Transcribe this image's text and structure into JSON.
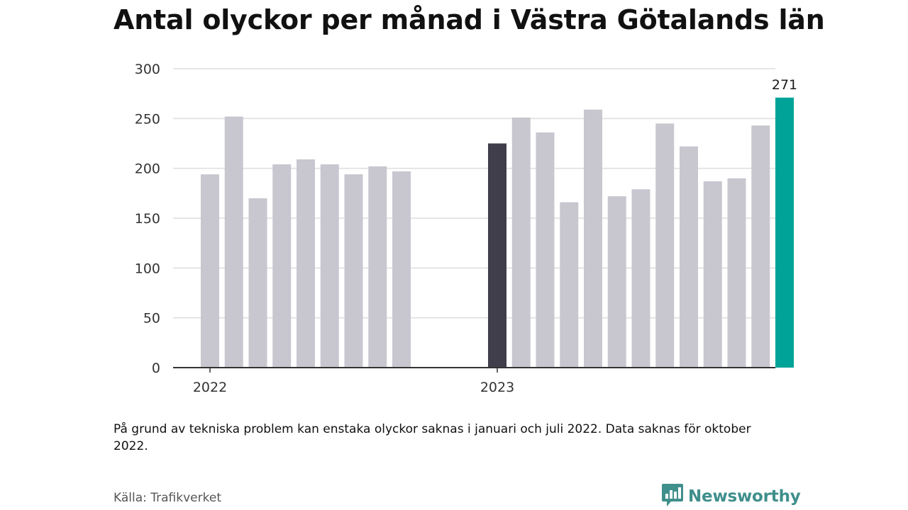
{
  "title": "Antal olyckor per månad i Västra Götalands län",
  "note": "På grund av tekniska problem kan enstaka olyckor saknas i januari och juli 2022. Data saknas för oktober 2022.",
  "source": "Källa: Trafikverket",
  "brand": {
    "name": "Newsworthy",
    "icon": "newsworthy-logo-icon",
    "color": "#3f8f8c"
  },
  "colors": {
    "bar": "#c8c7cf",
    "highlight_dark": "#403e4b",
    "highlight_latest": "#00a398",
    "grid": "#dddddd",
    "axis": "#333333"
  },
  "chart_data": {
    "type": "bar",
    "title": "Antal olyckor per månad i Västra Götalands län",
    "xlabel": "",
    "ylabel": "",
    "ylim": [
      0,
      300
    ],
    "yticks": [
      0,
      50,
      100,
      150,
      200,
      250,
      300
    ],
    "grid": true,
    "x_tick_labels": [
      {
        "label": "2022",
        "category": "2022-01"
      },
      {
        "label": "2023",
        "category": "2023-01"
      }
    ],
    "categories": [
      "2022-01",
      "2022-02",
      "2022-03",
      "2022-04",
      "2022-05",
      "2022-06",
      "2022-07",
      "2022-08",
      "2022-09",
      "2022-10",
      "2022-11",
      "2022-12",
      "2023-01",
      "2023-02",
      "2023-03",
      "2023-04",
      "2023-05",
      "2023-06",
      "2023-07",
      "2023-08",
      "2023-09",
      "2023-10",
      "2023-11",
      "2023-12",
      "2024-01"
    ],
    "values": [
      194,
      252,
      170,
      204,
      209,
      204,
      194,
      202,
      197,
      null,
      null,
      null,
      225,
      251,
      236,
      166,
      259,
      172,
      179,
      245,
      222,
      187,
      190,
      243,
      271
    ],
    "highlights": [
      {
        "category": "2023-01",
        "style": "dark"
      },
      {
        "category": "2024-01",
        "style": "latest",
        "label": "271"
      }
    ]
  }
}
